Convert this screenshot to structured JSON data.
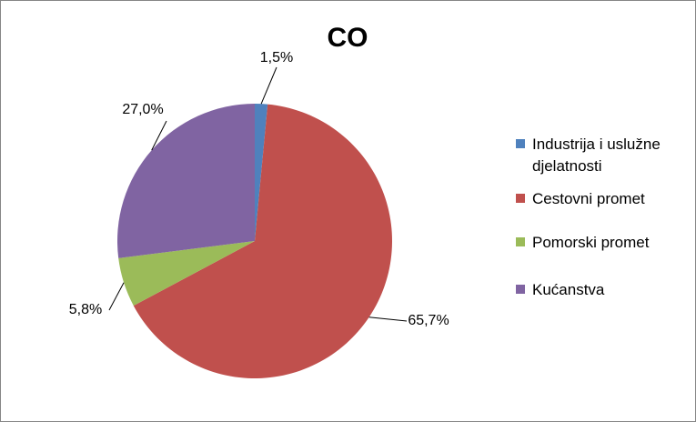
{
  "chart_data": {
    "type": "pie",
    "title": "CO",
    "categories": [
      "Industrija i uslužne djelatnosti",
      "Cestovni promet",
      "Pomorski promet",
      "Kućanstva"
    ],
    "values": [
      1.5,
      65.7,
      5.8,
      27.0
    ],
    "value_labels": [
      "1,5%",
      "65,7%",
      "5,8%",
      "27,0%"
    ],
    "colors": [
      "#4f81bd",
      "#c0504d",
      "#9bbb59",
      "#8064a2"
    ],
    "legend": "right"
  }
}
